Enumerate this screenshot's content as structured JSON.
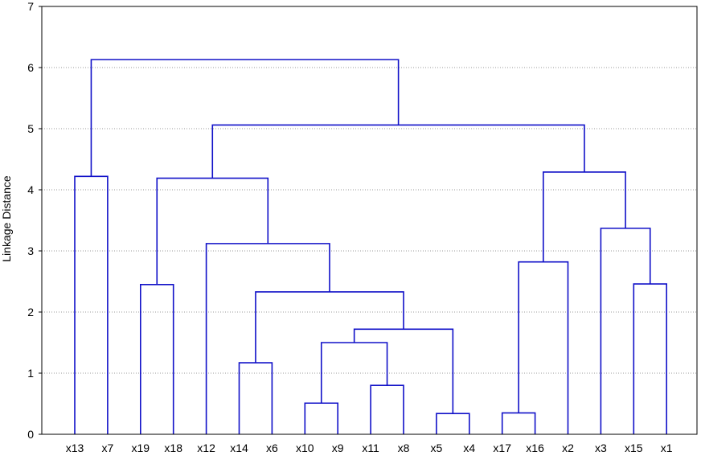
{
  "chart_data": {
    "type": "dendrogram",
    "ylabel": "Linkage Distance",
    "ylim": [
      0,
      7
    ],
    "yticks": [
      0,
      1,
      2,
      3,
      4,
      5,
      6,
      7
    ],
    "grid": true,
    "colors": {
      "tree": "#1010c8",
      "grid": "#9a9a9a"
    },
    "leaves": [
      "x13",
      "x7",
      "x19",
      "x18",
      "x12",
      "x14",
      "x6",
      "x10",
      "x9",
      "x11",
      "x8",
      "x5",
      "x4",
      "x17",
      "x16",
      "x2",
      "x3",
      "x15",
      "x1"
    ],
    "merges": [
      {
        "left": "x13",
        "right": "x7",
        "height": 4.22
      },
      {
        "left": "x19",
        "right": "x18",
        "height": 2.45
      },
      {
        "left": "x14",
        "right": "x6",
        "height": 1.17
      },
      {
        "left": "x10",
        "right": "x9",
        "height": 0.51
      },
      {
        "left": "x11",
        "right": "x8",
        "height": 0.8
      },
      {
        "left": "x5",
        "right": "x4",
        "height": 0.34
      },
      {
        "left": "x17",
        "right": "x16",
        "height": 0.35
      },
      {
        "left": "x15",
        "right": "x1",
        "height": 2.46
      },
      {
        "left": "x10-x9",
        "right": "x11-x8",
        "height": 1.5
      },
      {
        "left": "x10-x9-x11-x8",
        "right": "x5-x4",
        "height": 1.72
      },
      {
        "left": "x14-x6",
        "right": "x10-x9-x11-x8-x5-x4",
        "height": 2.33
      },
      {
        "left": "x12",
        "right": "x14-x6-x10-x9-x11-x8-x5-x4",
        "height": 3.12
      },
      {
        "left": "x19-x18",
        "right": "x12-x14-x6-x10-x9-x11-x8-x5-x4",
        "height": 4.19
      },
      {
        "left": "x17-x16",
        "right": "x2",
        "height": 2.82
      },
      {
        "left": "x3",
        "right": "x15-x1",
        "height": 3.37
      },
      {
        "left": "x17-x16-x2",
        "right": "x3-x15-x1",
        "height": 4.29
      },
      {
        "left": "x19...x4",
        "right": "x17...x1",
        "height": 5.06
      },
      {
        "left": "x13-x7",
        "right": "x19...x1",
        "height": 6.13
      }
    ]
  }
}
